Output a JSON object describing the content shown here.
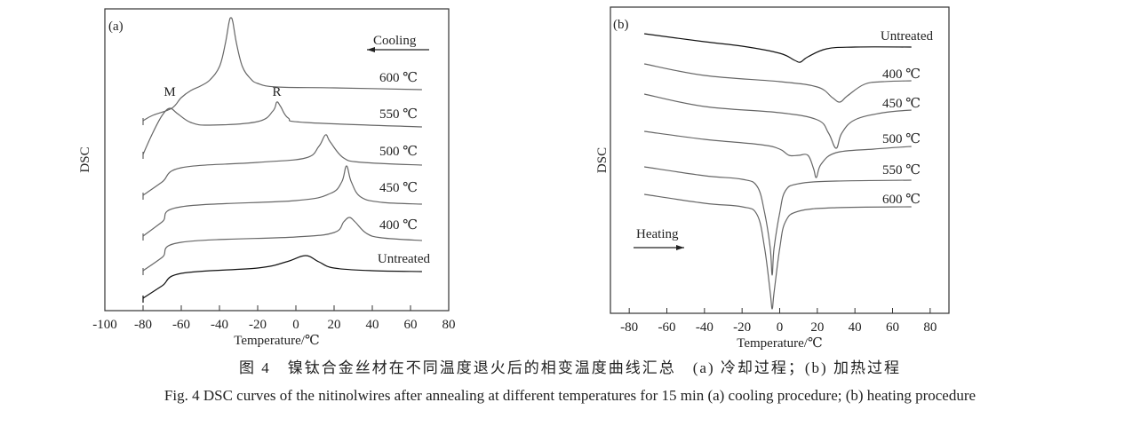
{
  "caption": {
    "chinese": "图 4　镍钛合金丝材在不同温度退火后的相变温度曲线汇总　(a) 冷却过程；(b) 加热过程",
    "english": "Fig. 4   DSC curves of the nitinolwires after annealing at different temperatures for 15 min   (a) cooling procedure; (b) heating procedure"
  },
  "colors": {
    "untreated": "#111111",
    "annealed": "#666666",
    "axis": "#333333"
  },
  "chart_data": [
    {
      "type": "line",
      "panel_label": "(a)",
      "title": "",
      "xlabel": "Temperature/℃",
      "ylabel": "DSC",
      "xlim": [
        -100,
        80
      ],
      "ylim": [
        0,
        340
      ],
      "xticks": [
        -100,
        -80,
        -60,
        -40,
        -20,
        0,
        20,
        40,
        60,
        80
      ],
      "direction_label": "Cooling",
      "direction": "left",
      "annotations": [
        {
          "text": "M",
          "x": -66,
          "y": 242
        },
        {
          "text": "R",
          "x": -10,
          "y": 242
        }
      ],
      "grid": false,
      "series": [
        {
          "name": "600 ℃",
          "points": [
            [
              -80,
              214
            ],
            [
              -75,
              220
            ],
            [
              -65,
              228
            ],
            [
              -60,
              240
            ],
            [
              -55,
              248
            ],
            [
              -50,
              253
            ],
            [
              -45,
              260
            ],
            [
              -40,
              275
            ],
            [
              -37,
              300
            ],
            [
              -35,
              325
            ],
            [
              -34,
              330
            ],
            [
              -33,
              325
            ],
            [
              -31,
              300
            ],
            [
              -28,
              275
            ],
            [
              -24,
              262
            ],
            [
              -20,
              256
            ],
            [
              -10,
              252
            ],
            [
              20,
              251
            ],
            [
              66,
              249
            ]
          ]
        },
        {
          "name": "550 ℃",
          "points": [
            [
              -80,
              176
            ],
            [
              -75,
              200
            ],
            [
              -70,
              220
            ],
            [
              -66,
              228
            ],
            [
              -62,
              222
            ],
            [
              -55,
              212
            ],
            [
              -45,
              209
            ],
            [
              -20,
              213
            ],
            [
              -12,
              225
            ],
            [
              -10,
              235
            ],
            [
              -8,
              230
            ],
            [
              -4,
              217
            ],
            [
              5,
              212
            ],
            [
              66,
              207
            ]
          ]
        },
        {
          "name": "500 ℃",
          "points": [
            [
              -80,
              130
            ],
            [
              -70,
              145
            ],
            [
              -60,
              161
            ],
            [
              -20,
              167
            ],
            [
              5,
              172
            ],
            [
              12,
              185
            ],
            [
              15.5,
              198
            ],
            [
              18,
              190
            ],
            [
              25,
              172
            ],
            [
              35,
              167
            ],
            [
              66,
              164
            ]
          ]
        },
        {
          "name": "450 ℃",
          "points": [
            [
              -80,
              84
            ],
            [
              -70,
              100
            ],
            [
              -60,
              117
            ],
            [
              0,
              124
            ],
            [
              18,
              132
            ],
            [
              24,
              145
            ],
            [
              26.5,
              163
            ],
            [
              29,
              145
            ],
            [
              34,
              128
            ],
            [
              45,
              122
            ],
            [
              66,
              120
            ]
          ]
        },
        {
          "name": "400 ℃",
          "points": [
            [
              -80,
              45
            ],
            [
              -70,
              60
            ],
            [
              -60,
              77
            ],
            [
              0,
              83
            ],
            [
              20,
              88
            ],
            [
              25,
              100
            ],
            [
              28,
              105
            ],
            [
              31,
              100
            ],
            [
              37,
              87
            ],
            [
              45,
              82
            ],
            [
              66,
              79
            ]
          ]
        },
        {
          "name": "Untreated",
          "points": [
            [
              -80,
              14
            ],
            [
              -70,
              28
            ],
            [
              -60,
              42
            ],
            [
              -20,
              48
            ],
            [
              -5,
              55
            ],
            [
              5,
              62
            ],
            [
              12,
              55
            ],
            [
              20,
              48
            ],
            [
              40,
              45
            ],
            [
              66,
              44
            ]
          ]
        }
      ]
    },
    {
      "type": "line",
      "panel_label": "(b)",
      "title": "",
      "xlabel": "Temperature/℃",
      "ylabel": "DSC",
      "xlim": [
        -90,
        90
      ],
      "ylim": [
        0,
        345
      ],
      "xticks": [
        -80,
        -60,
        -40,
        -20,
        0,
        20,
        40,
        60,
        80
      ],
      "direction_label": "Heating",
      "direction": "right",
      "annotations": [],
      "grid": false,
      "series": [
        {
          "name": "Untreated",
          "points": [
            [
              -72,
              315
            ],
            [
              -40,
              306
            ],
            [
              -20,
              301
            ],
            [
              0,
              293
            ],
            [
              8,
              285
            ],
            [
              11,
              283
            ],
            [
              15,
              289
            ],
            [
              25,
              298
            ],
            [
              40,
              300
            ],
            [
              70,
              300
            ]
          ]
        },
        {
          "name": "400 ℃",
          "points": [
            [
              -72,
              281
            ],
            [
              -40,
              268
            ],
            [
              0,
              261
            ],
            [
              20,
              255
            ],
            [
              28,
              243
            ],
            [
              32,
              238
            ],
            [
              36,
              245
            ],
            [
              45,
              258
            ],
            [
              55,
              261
            ],
            [
              70,
              262
            ]
          ]
        },
        {
          "name": "450 ℃",
          "points": [
            [
              -72,
              247
            ],
            [
              -40,
              233
            ],
            [
              0,
              226
            ],
            [
              20,
              218
            ],
            [
              26,
              203
            ],
            [
              30,
              186
            ],
            [
              33,
              203
            ],
            [
              40,
              218
            ],
            [
              55,
              226
            ],
            [
              70,
              229
            ]
          ]
        },
        {
          "name": "500 ℃",
          "points": [
            [
              -72,
              205
            ],
            [
              -40,
              196
            ],
            [
              -10,
              190
            ],
            [
              0,
              185
            ],
            [
              5,
              178
            ],
            [
              10,
              178
            ],
            [
              15,
              178
            ],
            [
              18,
              163
            ],
            [
              19.5,
              153
            ],
            [
              22,
              168
            ],
            [
              30,
              181
            ],
            [
              50,
              185
            ],
            [
              70,
              188
            ]
          ]
        },
        {
          "name": "550 ℃",
          "points": [
            [
              -72,
              165
            ],
            [
              -40,
              155
            ],
            [
              -20,
              151
            ],
            [
              -12,
              143
            ],
            [
              -8,
              113
            ],
            [
              -5,
              73
            ],
            [
              -4,
              43
            ],
            [
              -3,
              73
            ],
            [
              0,
              113
            ],
            [
              3,
              138
            ],
            [
              10,
              146
            ],
            [
              30,
              149
            ],
            [
              70,
              150
            ]
          ]
        },
        {
          "name": "600 ℃",
          "points": [
            [
              -72,
              134
            ],
            [
              -40,
              124
            ],
            [
              -20,
              120
            ],
            [
              -12,
              111
            ],
            [
              -8,
              73
            ],
            [
              -5,
              23
            ],
            [
              -4,
              5
            ],
            [
              -3,
              23
            ],
            [
              0,
              73
            ],
            [
              3,
              103
            ],
            [
              10,
              115
            ],
            [
              30,
              119
            ],
            [
              70,
              120
            ]
          ]
        }
      ]
    }
  ]
}
